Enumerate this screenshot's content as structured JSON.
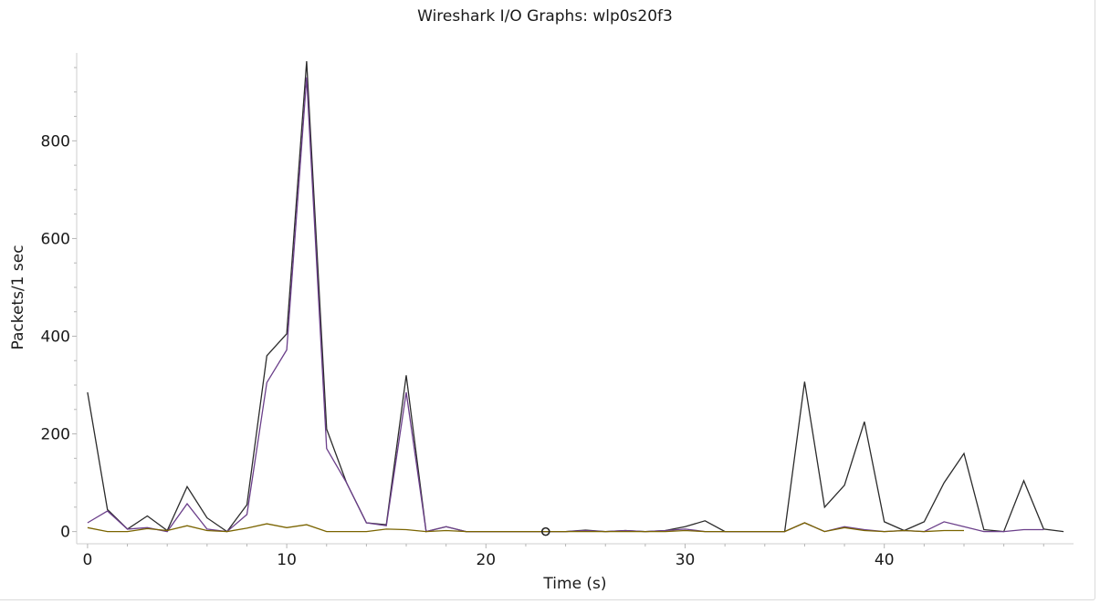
{
  "chart_data": {
    "type": "line",
    "title": "Wireshark I/O Graphs: wlp0s20f3",
    "xlabel": "Time (s)",
    "ylabel": "Packets/1 sec",
    "xlim": [
      -0.5,
      49.5
    ],
    "ylim": [
      -25,
      980
    ],
    "xticks": [
      0,
      10,
      20,
      30,
      40
    ],
    "yticks": [
      0,
      200,
      400,
      600,
      800
    ],
    "grid": false,
    "legend": "none",
    "series": [
      {
        "color": "#2b2b2b",
        "x": [
          0,
          1,
          2,
          3,
          4,
          5,
          6,
          7,
          8,
          9,
          10,
          11,
          12,
          13,
          14,
          15,
          16,
          17,
          18,
          19,
          20,
          21,
          22,
          23,
          24,
          25,
          26,
          27,
          28,
          29,
          30,
          31,
          32,
          33,
          34,
          35,
          36,
          37,
          38,
          39,
          40,
          41,
          42,
          43,
          44,
          45,
          46,
          47,
          48,
          49
        ],
        "values": [
          285,
          45,
          5,
          32,
          2,
          92,
          28,
          0,
          55,
          360,
          405,
          963,
          210,
          100,
          18,
          14,
          320,
          0,
          10,
          0,
          0,
          0,
          0,
          0,
          0,
          3,
          0,
          2,
          0,
          2,
          10,
          22,
          0,
          0,
          0,
          0,
          307,
          50,
          95,
          225,
          20,
          2,
          20,
          100,
          160,
          4,
          0,
          104,
          5,
          0
        ]
      },
      {
        "color": "#6b3f8a",
        "x": [
          0,
          1,
          2,
          3,
          4,
          5,
          6,
          7,
          8,
          9,
          10,
          11,
          12,
          13,
          14,
          15,
          16,
          17,
          18,
          19,
          20,
          21,
          22,
          23,
          24,
          25,
          26,
          27,
          28,
          29,
          30,
          31,
          32,
          33,
          34,
          35,
          36,
          37,
          38,
          39,
          40,
          41,
          42,
          43,
          44,
          45,
          46,
          47,
          48
        ],
        "values": [
          18,
          42,
          5,
          8,
          0,
          57,
          5,
          0,
          35,
          305,
          372,
          930,
          170,
          100,
          18,
          12,
          285,
          0,
          10,
          0,
          0,
          0,
          0,
          0,
          0,
          2,
          0,
          2,
          0,
          2,
          5,
          0,
          0,
          0,
          0,
          0,
          18,
          0,
          10,
          4,
          0,
          2,
          0,
          20,
          10,
          0,
          0,
          4,
          4
        ]
      },
      {
        "color": "#7a6400",
        "x": [
          0,
          1,
          2,
          3,
          4,
          5,
          6,
          7,
          8,
          9,
          10,
          11,
          12,
          13,
          14,
          15,
          16,
          17,
          18,
          19,
          20,
          21,
          22,
          23,
          24,
          25,
          26,
          27,
          28,
          29,
          30,
          31,
          32,
          33,
          34,
          35,
          36,
          37,
          38,
          39,
          40,
          41,
          42,
          43,
          44
        ],
        "values": [
          8,
          0,
          0,
          6,
          2,
          12,
          2,
          0,
          7,
          16,
          8,
          14,
          0,
          0,
          0,
          5,
          4,
          0,
          2,
          0,
          0,
          0,
          0,
          0,
          0,
          0,
          0,
          0,
          0,
          0,
          2,
          0,
          0,
          0,
          0,
          0,
          18,
          0,
          8,
          2,
          0,
          2,
          0,
          2,
          2
        ]
      }
    ],
    "marker": {
      "x": 23,
      "y": 0
    }
  }
}
